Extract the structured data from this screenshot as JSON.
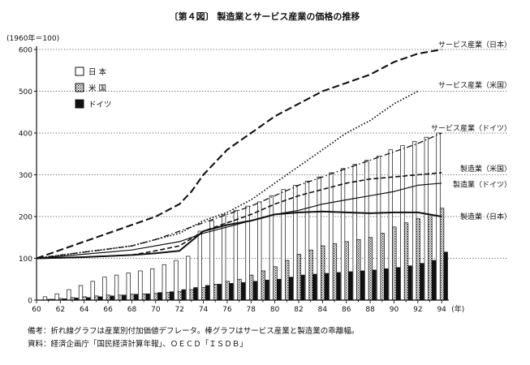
{
  "chart_data": {
    "type": "bar+line",
    "title": "〔第４図〕 製造業とサービス産業の価格の推移",
    "ylabel": "(1960年＝100)",
    "xlabel_unit": "(年)",
    "ylim": [
      0,
      600
    ],
    "yticks": [
      0,
      100,
      200,
      300,
      400,
      500,
      600
    ],
    "xlim": [
      60,
      94.6
    ],
    "xticks": [
      60,
      62,
      64,
      66,
      68,
      70,
      72,
      74,
      76,
      78,
      80,
      82,
      84,
      86,
      88,
      90,
      92,
      94
    ],
    "grid": "dotted-horizontal",
    "legend": {
      "position": "top-left",
      "entries": [
        {
          "label": "日 本",
          "pattern": "white"
        },
        {
          "label": "米 国",
          "pattern": "dotted"
        },
        {
          "label": "ドイツ",
          "pattern": "black"
        }
      ]
    },
    "bars": {
      "description_note": "棒グラフはサービス産業と製造業の乖離幅",
      "x": [
        60,
        61,
        62,
        63,
        64,
        65,
        66,
        67,
        68,
        69,
        70,
        71,
        72,
        73,
        74,
        75,
        76,
        77,
        78,
        79,
        80,
        81,
        82,
        83,
        84,
        85,
        86,
        87,
        88,
        89,
        90,
        91,
        92,
        93,
        94
      ],
      "series": [
        {
          "name": "日 本",
          "values": [
            0,
            8,
            15,
            25,
            35,
            45,
            55,
            60,
            65,
            70,
            75,
            85,
            95,
            105,
            165,
            190,
            205,
            215,
            225,
            235,
            250,
            265,
            275,
            285,
            295,
            305,
            315,
            325,
            335,
            345,
            360,
            370,
            380,
            390,
            400
          ]
        },
        {
          "name": "米 国",
          "values": [
            0,
            2,
            4,
            6,
            8,
            10,
            12,
            12,
            14,
            15,
            16,
            18,
            20,
            25,
            30,
            38,
            45,
            50,
            60,
            70,
            80,
            95,
            110,
            120,
            130,
            135,
            140,
            145,
            150,
            160,
            175,
            185,
            195,
            205,
            220
          ]
        },
        {
          "name": "ドイツ",
          "values": [
            0,
            2,
            3,
            5,
            6,
            8,
            10,
            12,
            14,
            15,
            18,
            20,
            25,
            30,
            35,
            38,
            40,
            42,
            45,
            48,
            50,
            55,
            60,
            62,
            64,
            66,
            68,
            70,
            72,
            75,
            78,
            82,
            88,
            95,
            115
          ]
        }
      ]
    },
    "lines": [
      {
        "name": "サービス産業（日本）",
        "style": "long-dash",
        "x": [
          60,
          64,
          68,
          70,
          72,
          73,
          74,
          76,
          78,
          80,
          82,
          84,
          86,
          88,
          90,
          92,
          94
        ],
        "values": [
          100,
          140,
          180,
          200,
          230,
          260,
          300,
          360,
          400,
          440,
          470,
          500,
          520,
          540,
          570,
          590,
          600
        ]
      },
      {
        "name": "サービス産業（米国）",
        "style": "dotted",
        "x": [
          60,
          64,
          68,
          72,
          74,
          76,
          78,
          80,
          82,
          84,
          86,
          88,
          90,
          92
        ],
        "values": [
          100,
          115,
          130,
          160,
          190,
          210,
          240,
          280,
          320,
          360,
          400,
          430,
          470,
          500
        ]
      },
      {
        "name": "サービス産業（ドイツ）",
        "style": "dash-dot",
        "x": [
          60,
          62,
          64,
          66,
          68,
          70,
          72,
          74,
          76,
          78,
          80,
          82,
          84,
          86,
          88,
          90,
          92,
          94
        ],
        "values": [
          100,
          108,
          115,
          122,
          130,
          145,
          165,
          185,
          205,
          225,
          250,
          275,
          295,
          315,
          335,
          355,
          375,
          400
        ]
      },
      {
        "name": "製造業（米国）",
        "style": "dash",
        "x": [
          60,
          64,
          68,
          70,
          72,
          74,
          76,
          78,
          80,
          82,
          84,
          86,
          88,
          90,
          92,
          94
        ],
        "values": [
          100,
          103,
          108,
          118,
          130,
          165,
          185,
          205,
          230,
          250,
          265,
          280,
          290,
          295,
          300,
          305
        ]
      },
      {
        "name": "製造業（ドイツ）",
        "style": "solid-thin",
        "x": [
          60,
          64,
          68,
          72,
          74,
          76,
          78,
          80,
          82,
          84,
          86,
          88,
          90,
          92,
          94
        ],
        "values": [
          100,
          110,
          120,
          140,
          160,
          175,
          190,
          205,
          215,
          230,
          240,
          250,
          260,
          275,
          280
        ]
      },
      {
        "name": "製造業（日本）",
        "style": "solid-thick",
        "x": [
          60,
          64,
          68,
          70,
          72,
          74,
          76,
          78,
          80,
          82,
          84,
          86,
          88,
          90,
          92,
          94
        ],
        "values": [
          100,
          103,
          108,
          112,
          118,
          165,
          180,
          190,
          205,
          210,
          212,
          210,
          208,
          210,
          210,
          200
        ]
      }
    ],
    "line_labels": [
      {
        "text": "サービス産業（日本）",
        "series": "サービス産業（日本）",
        "value": 612
      },
      {
        "text": "サービス産業（米国）",
        "series": "サービス産業（米国）",
        "value": 515
      },
      {
        "text": "サービス産業（ドイツ）",
        "series": "サービス産業（ドイツ）",
        "value": 412
      },
      {
        "text": "製造業（米国）",
        "series": "製造業（米国）",
        "value": 315
      },
      {
        "text": "製造業（ドイツ）",
        "series": "製造業（ドイツ）",
        "value": 277
      },
      {
        "text": "製造業（日本）",
        "series": "製造業（日本）",
        "value": 200
      }
    ]
  },
  "notes": {
    "remark": "備考：折れ線グラフは産業別付加価値デフレータ。棒グラフはサービス産業と製造業の乖離幅。",
    "source": "資料：経済企画庁「国民経済計算年報」、ＯＥＣＤ「ＩＳＤＢ」"
  }
}
